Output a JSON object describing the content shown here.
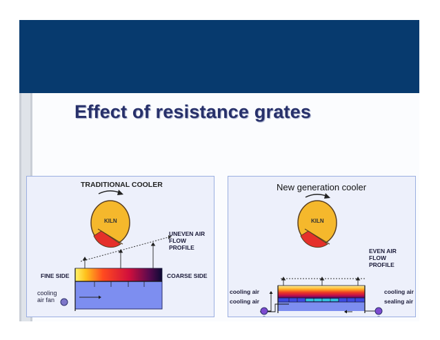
{
  "slide": {
    "title": "Effect of resistance grates",
    "colors": {
      "header": "#073a6e",
      "title": "#27306a",
      "panel_border": "#9aaee0"
    }
  },
  "left_panel": {
    "title": "TRADITIONAL COOLER",
    "kiln_label": "KILN",
    "profile_label": [
      "UNEVEN AIR",
      "FLOW",
      "PROFILE"
    ],
    "fine_side": "FINE SIDE",
    "coarse_side": "COARSE SIDE",
    "fan_label": [
      "cooling",
      "air fan"
    ]
  },
  "right_panel": {
    "title": "New generation cooler",
    "kiln_label": "KILN",
    "profile_label": [
      "EVEN AIR",
      "FLOW",
      "PROFILE"
    ],
    "left_labels": [
      "cooling air",
      "cooling air"
    ],
    "right_labels": [
      "cooling air",
      "sealing air"
    ]
  }
}
